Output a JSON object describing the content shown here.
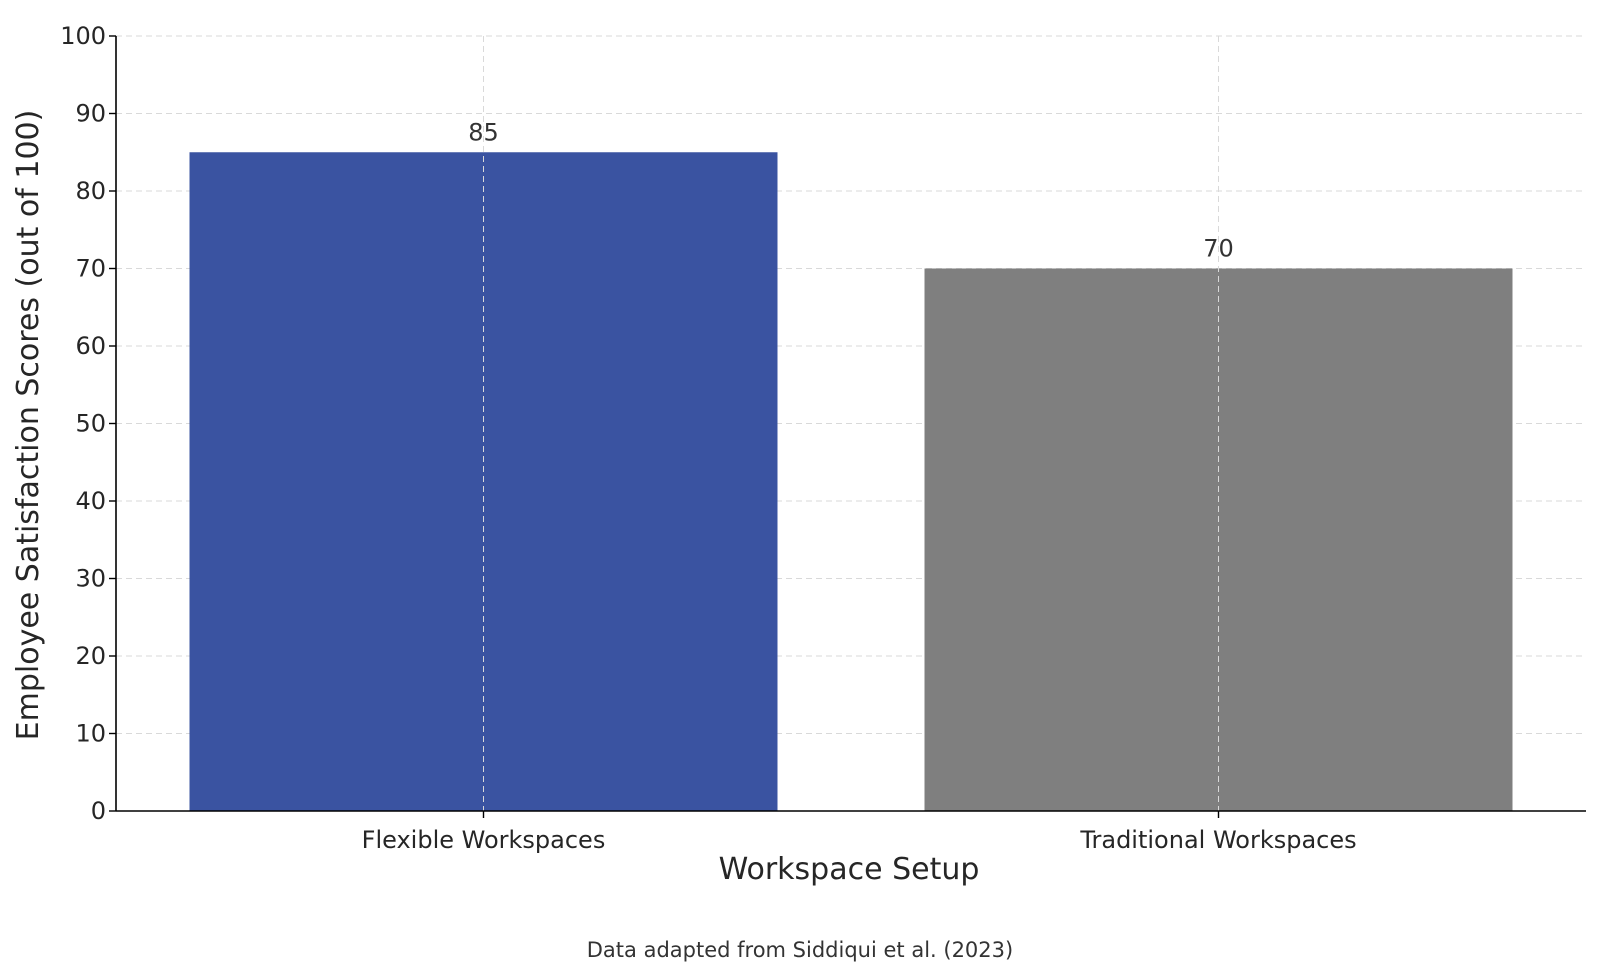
{
  "chart_data": {
    "type": "bar",
    "categories": [
      "Flexible Workspaces",
      "Traditional Workspaces"
    ],
    "values": [
      85,
      70
    ],
    "data_labels": [
      "85",
      "70"
    ],
    "colors": [
      "#3a53a1",
      "#7f7f7f"
    ],
    "title": "",
    "xlabel": "Workspace Setup",
    "ylabel": "Employee Satisfaction Scores (out of 100)",
    "ylim": [
      0,
      100
    ],
    "yticks": [
      0,
      10,
      20,
      30,
      40,
      50,
      60,
      70,
      80,
      90,
      100
    ],
    "grid": true,
    "caption": "Data adapted from Siddiqui et al. (2023)"
  }
}
